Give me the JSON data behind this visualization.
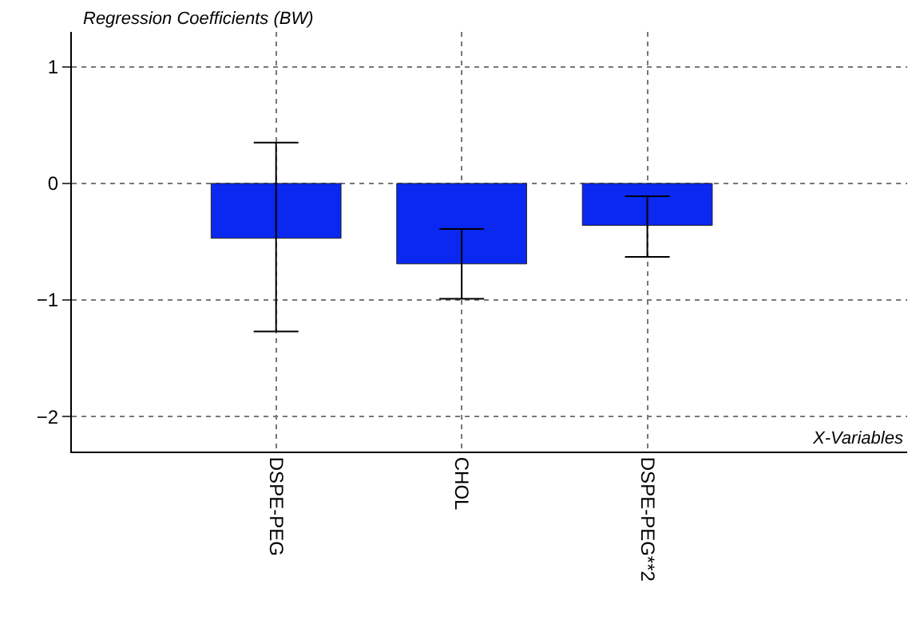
{
  "chart_data": {
    "type": "bar",
    "ylabel": "Regression Coefficients (BW)",
    "xlabel": "X-Variables",
    "categories": [
      "DSPE-PEG",
      "CHOL",
      "DSPE-PEG**2"
    ],
    "values": [
      -0.47,
      -0.69,
      -0.36
    ],
    "errors": [
      [
        -1.27,
        0.35
      ],
      [
        -0.99,
        -0.39
      ],
      [
        -0.63,
        -0.11
      ]
    ],
    "color": "#0a28f0",
    "ylim": [
      -2.3,
      1.3
    ],
    "yticks": [
      -2,
      -1,
      0,
      1
    ],
    "grid": true
  }
}
